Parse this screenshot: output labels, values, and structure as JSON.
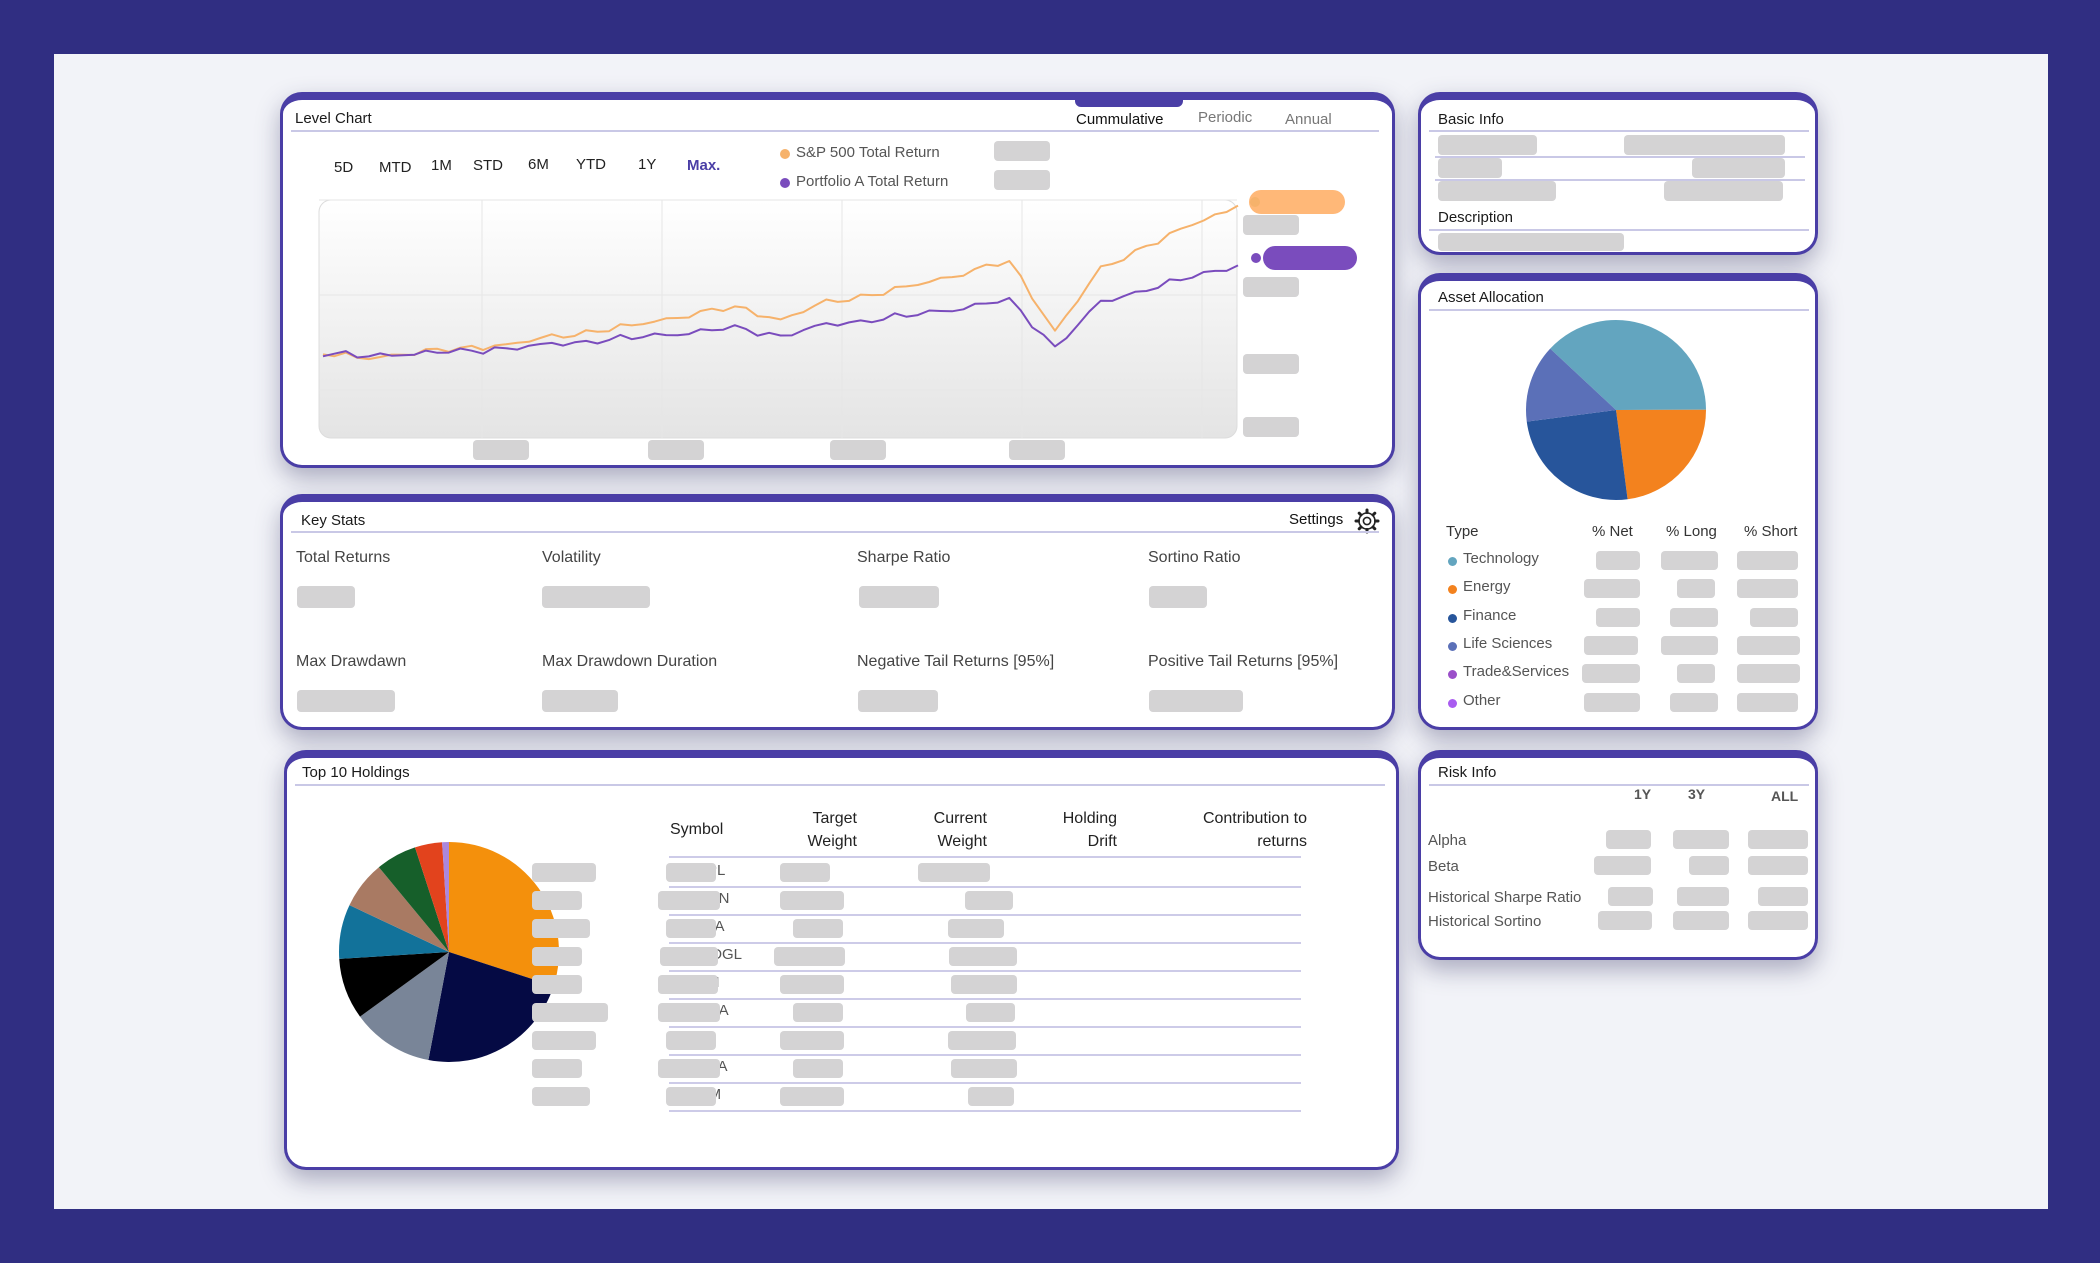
{
  "level_chart": {
    "title": "Level Chart",
    "tabs": [
      "Cummulative",
      "Periodic",
      "Annual"
    ],
    "ranges": [
      "5D",
      "MTD",
      "1M",
      "STD",
      "6M",
      "YTD",
      "1Y",
      "Max."
    ],
    "legend": [
      "S&P 500 Total Return",
      "Portfolio A Total Return"
    ]
  },
  "key_stats": {
    "title": "Key Stats",
    "settings": "Settings",
    "labels": [
      "Total Returns",
      "Volatility",
      "Sharpe Ratio",
      "Sortino Ratio",
      "Max Drawdawn",
      "Max Drawdown Duration",
      "Negative Tail Returns [95%]",
      "Positive Tail Returns [95%]"
    ]
  },
  "holdings": {
    "title": "Top 10 Holdings",
    "headers": {
      "symbol": "Symbol",
      "target": [
        "Target",
        "Weight"
      ],
      "current": [
        "Current",
        "Weight"
      ],
      "drift": [
        "Holding",
        "Drift"
      ],
      "contrib": [
        "Contribution to",
        "returns"
      ]
    },
    "symbols": [
      "AAPL",
      "AMZN",
      "TSLA",
      "GOOGL",
      "UNH",
      "NVDA",
      "JNJ",
      "META",
      "XOM"
    ]
  },
  "basic_info": {
    "title": "Basic Info",
    "description": "Description"
  },
  "asset_allocation": {
    "title": "Asset Allocation",
    "headers": [
      "Type",
      "% Net",
      "% Long",
      "% Short"
    ],
    "types": [
      "Technology",
      "Energy",
      "Finance",
      "Life Sciences",
      "Trade&Services",
      "Other"
    ]
  },
  "risk_info": {
    "title": "Risk Info",
    "headers": [
      "1Y",
      "3Y",
      "ALL"
    ],
    "rows": [
      "Alpha",
      "Beta",
      "Historical Sharpe Ratio",
      "Historical Sortino"
    ]
  },
  "chart_data": [
    {
      "type": "line",
      "x": [
        0,
        1,
        2,
        3,
        4,
        5,
        6,
        7,
        8,
        9,
        10,
        11,
        12,
        13,
        14,
        15,
        16,
        17,
        18,
        19,
        20
      ],
      "series": [
        {
          "name": "S&P 500 Total Return",
          "color": "#f6b26b",
          "values": [
            100,
            96,
            101,
            103,
            106,
            111,
            116,
            121,
            128,
            133,
            124,
            136,
            142,
            149,
            158,
            166,
            116,
            160,
            177,
            192,
            206
          ]
        },
        {
          "name": "Portfolio A Total Return",
          "color": "#7a4cbd",
          "values": [
            100,
            98,
            100,
            101,
            103,
            106,
            109,
            112,
            115,
            118,
            112,
            120,
            124,
            128,
            133,
            138,
            104,
            136,
            146,
            155,
            163
          ]
        }
      ]
    },
    {
      "type": "pie",
      "categories": [
        "Technology",
        "Energy",
        "Finance",
        "Life Sciences",
        "Trade&Services",
        "Other"
      ],
      "values": [
        38,
        23,
        25,
        14,
        0,
        0
      ],
      "colors": [
        "#63a5bf",
        "#f3821e",
        "#27559b",
        "#5b70b8",
        "#9b4fc9",
        "#a95cf0"
      ]
    },
    {
      "type": "pie",
      "categories": [
        "AAPL",
        "AMZN",
        "TSLA",
        "GOOGL",
        "UNH",
        "NVDA",
        "JNJ",
        "META",
        "XOM"
      ],
      "values": [
        30,
        23,
        12,
        9,
        8,
        7,
        6,
        4,
        1
      ],
      "colors": [
        "#f4900c",
        "#050a44",
        "#798598",
        "#000000",
        "#12729a",
        "#a97a63",
        "#165f2a",
        "#e2431d",
        "#ab87dd"
      ]
    }
  ]
}
